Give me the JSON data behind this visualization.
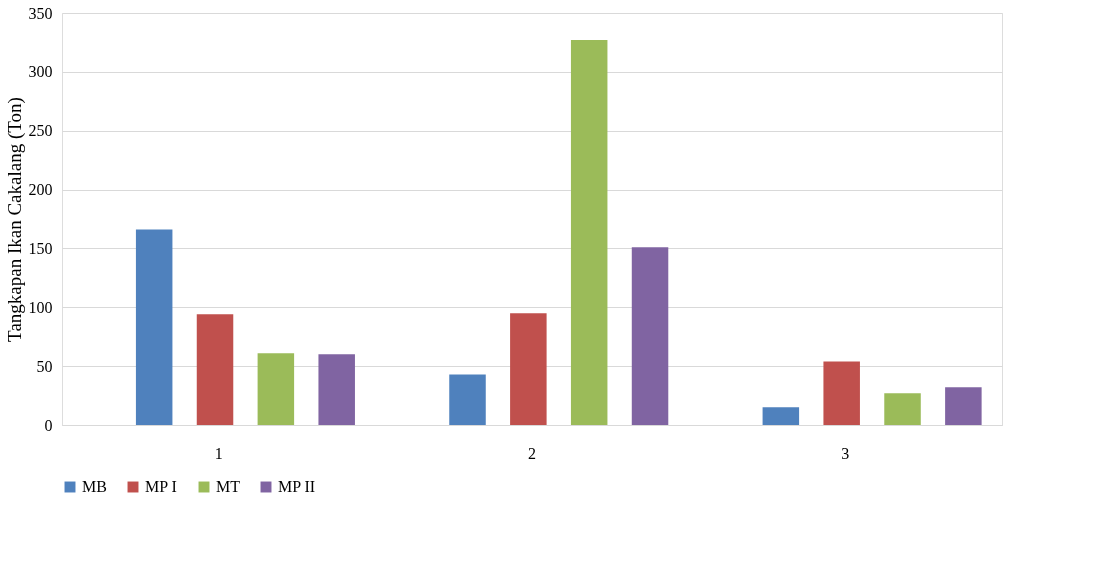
{
  "chart_data": {
    "type": "bar",
    "ylabel": "Tangkapan Ikan Cakalang (Ton)",
    "categories": [
      "1",
      "2",
      "3"
    ],
    "series": [
      {
        "name": "MB",
        "color": "#4f81bd",
        "values": [
          166,
          43,
          15
        ]
      },
      {
        "name": "MP I",
        "color": "#c0504d",
        "values": [
          94,
          95,
          54
        ]
      },
      {
        "name": "MT",
        "color": "#9bbb59",
        "values": [
          61,
          327,
          27
        ]
      },
      {
        "name": "MP II",
        "color": "#8064a2",
        "values": [
          60,
          151,
          32
        ]
      }
    ],
    "ylim": [
      0,
      350
    ],
    "yticks": [
      0,
      50,
      100,
      150,
      200,
      250,
      300,
      350
    ],
    "grid": "y",
    "legend": "bottom"
  }
}
